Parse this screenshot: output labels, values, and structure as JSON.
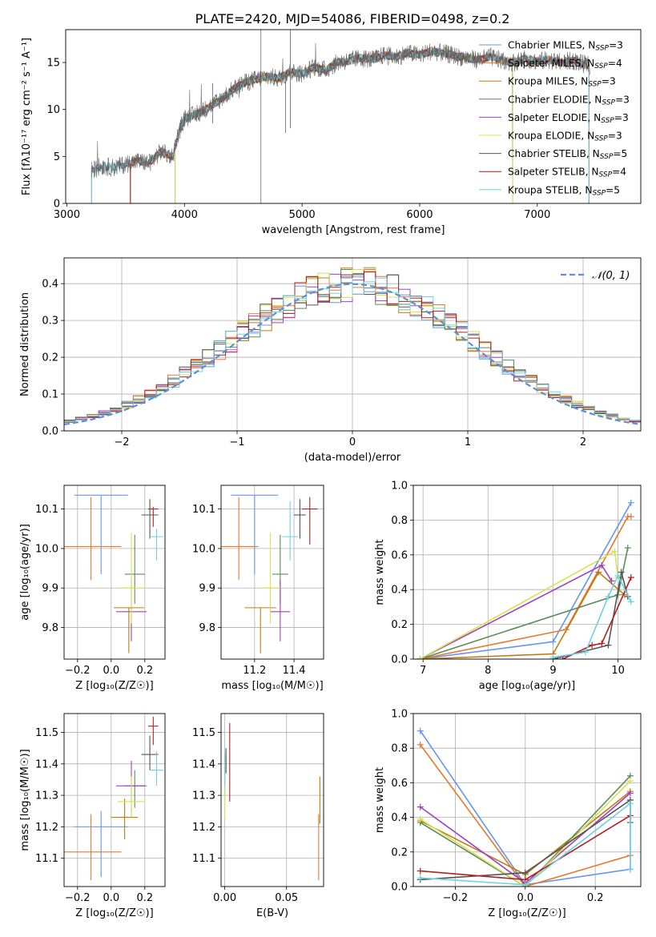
{
  "figure": {
    "title": "PLATE=2420, MJD=54086, FIBERID=0498, z=0.2"
  },
  "colors": {
    "Chabrier MILES": "#6495ed",
    "Salpeter MILES": "#e8772e",
    "Kroupa MILES": "#c07a10",
    "Chabrier ELODIE": "#5b8a5b",
    "Salpeter ELODIE": "#a040c0",
    "Kroupa ELODIE": "#d8e050",
    "Chabrier STELIB": "#555555",
    "Salpeter STELIB": "#b02020",
    "Kroupa STELIB": "#70d0e0",
    "normal_curve": "#5b8fd8"
  },
  "chart_data": [
    {
      "id": "spectrum",
      "type": "line",
      "title": "PLATE=2420, MJD=54086, FIBERID=0498, z=0.2",
      "xlabel": "wavelength [Angstrom, rest frame]",
      "ylabel": "Flux [fλ10⁻¹⁷ erg cm⁻² s⁻¹ A⁻¹]",
      "xlim": [
        2990,
        7880
      ],
      "ylim": [
        0,
        18.5
      ],
      "xticks": [
        3000,
        4000,
        5000,
        6000,
        7000
      ],
      "yticks": [
        0,
        5,
        10,
        15
      ],
      "grid": false,
      "legend_position": "right",
      "legend": [
        {
          "label": "Chabrier MILES, N",
          "sub": "SSP",
          "suffix": "=3"
        },
        {
          "label": "Salpeter MILES, N",
          "sub": "SSP",
          "suffix": "=4"
        },
        {
          "label": "Kroupa MILES, N",
          "sub": "SSP",
          "suffix": "=3"
        },
        {
          "label": "Chabrier ELODIE, N",
          "sub": "SSP",
          "suffix": "=3"
        },
        {
          "label": "Salpeter ELODIE, N",
          "sub": "SSP",
          "suffix": "=3"
        },
        {
          "label": "Kroupa ELODIE, N",
          "sub": "SSP",
          "suffix": "=3"
        },
        {
          "label": "Chabrier STELIB, N",
          "sub": "SSP",
          "suffix": "=5"
        },
        {
          "label": "Salpeter STELIB, N",
          "sub": "SSP",
          "suffix": "=4"
        },
        {
          "label": "Kroupa STELIB, N",
          "sub": "SSP",
          "suffix": "=5"
        }
      ],
      "continuum": [
        [
          3200,
          0
        ],
        [
          3210,
          3.5
        ],
        [
          3300,
          4.0
        ],
        [
          3400,
          3.8
        ],
        [
          3500,
          4.2
        ],
        [
          3600,
          4.5
        ],
        [
          3700,
          4.3
        ],
        [
          3800,
          5.5
        ],
        [
          3900,
          5.0
        ],
        [
          3950,
          7.5
        ],
        [
          4000,
          9.0
        ],
        [
          4100,
          9.5
        ],
        [
          4200,
          10.2
        ],
        [
          4300,
          11.0
        ],
        [
          4400,
          12.0
        ],
        [
          4500,
          12.8
        ],
        [
          4600,
          13.2
        ],
        [
          4700,
          13.5
        ],
        [
          4800,
          13.3
        ],
        [
          4900,
          14.0
        ],
        [
          5000,
          13.8
        ],
        [
          5100,
          14.5
        ],
        [
          5200,
          14.2
        ],
        [
          5300,
          15.0
        ],
        [
          5400,
          15.2
        ],
        [
          5500,
          15.5
        ],
        [
          5600,
          15.3
        ],
        [
          5700,
          15.8
        ],
        [
          5800,
          15.6
        ],
        [
          5900,
          16.0
        ],
        [
          6000,
          15.8
        ],
        [
          6100,
          16.2
        ],
        [
          6200,
          16.0
        ],
        [
          6300,
          15.7
        ],
        [
          6400,
          15.5
        ],
        [
          6500,
          15.3
        ],
        [
          6600,
          15.6
        ],
        [
          6700,
          15.2
        ],
        [
          6800,
          15.0
        ],
        [
          6900,
          15.4
        ],
        [
          7000,
          15.1
        ],
        [
          7100,
          15.3
        ],
        [
          7200,
          15.0
        ],
        [
          7300,
          15.2
        ],
        [
          7400,
          14.8
        ],
        [
          7450,
          14.7
        ]
      ],
      "model_cutoffs": [
        7440,
        7440,
        7440,
        6790,
        6790,
        6790,
        7440,
        7440,
        7440
      ],
      "model_starts": [
        3540,
        3540,
        3540,
        3920,
        3920,
        3920,
        3210,
        3540,
        3210
      ],
      "spikes": [
        [
          4650,
          0,
          18.5
        ],
        [
          4900,
          8,
          18.5
        ],
        [
          4240,
          8.5,
          12.8
        ],
        [
          4860,
          7.5,
          13.0
        ]
      ]
    },
    {
      "id": "residual_histogram",
      "type": "histogram",
      "xlabel": "(data-model)/error",
      "ylabel": "Normed distribution",
      "xlim": [
        -2.5,
        2.5
      ],
      "ylim": [
        0,
        0.47
      ],
      "xticks": [
        -2,
        -1,
        0,
        1,
        2
      ],
      "yticks": [
        0.0,
        0.1,
        0.2,
        0.3,
        0.4
      ],
      "grid": true,
      "legend_position": "top-right",
      "legend": [
        {
          "label": "𝒩(0, 1)"
        }
      ],
      "bin_width": 0.1,
      "bin_start": -2.5,
      "gaussian": {
        "mean": 0,
        "sigma": 1
      }
    },
    {
      "id": "age_vs_Z",
      "type": "errorbar",
      "xlabel": "Z [log₁₀(Z/Z☉)]",
      "ylabel": "age  [log₁₀(age/yr)]",
      "xlim": [
        -0.28,
        0.32
      ],
      "ylim": [
        9.72,
        10.16
      ],
      "xticks": [
        -0.2,
        0.0,
        0.2
      ],
      "yticks": [
        9.8,
        9.9,
        10.0,
        10.1
      ],
      "grid": true,
      "points": [
        {
          "series": "Chabrier MILES",
          "x": -0.06,
          "xerr": 0.16,
          "y": 10.135,
          "yerr_lo": 0.2,
          "yerr_hi": 0.0
        },
        {
          "series": "Salpeter MILES",
          "x": -0.12,
          "xerr": 0.18,
          "y": 10.005,
          "yerr_lo": 0.085,
          "yerr_hi": 0.125
        },
        {
          "series": "Kroupa MILES",
          "x": 0.05,
          "xerr": 0.0,
          "y": 9.85,
          "yerr_lo": 0.0,
          "yerr_hi": 0.0
        },
        {
          "series": "Chabrier ELODIE",
          "x": 0.14,
          "xerr": 0.06,
          "y": 9.935,
          "yerr_lo": 0.075,
          "yerr_hi": 0.1
        },
        {
          "series": "Salpeter ELODIE",
          "x": 0.12,
          "xerr": 0.09,
          "y": 9.84,
          "yerr_lo": 0.075,
          "yerr_hi": 0.08
        },
        {
          "series": "Kroupa ELODIE",
          "x": 0.12,
          "xerr": 0.08,
          "y": 9.9,
          "yerr_lo": 0.09,
          "yerr_hi": 0.14
        },
        {
          "series": "Chabrier STELIB",
          "x": 0.23,
          "xerr": 0.05,
          "y": 10.085,
          "yerr_lo": 0.06,
          "yerr_hi": 0.04
        },
        {
          "series": "Salpeter STELIB",
          "x": 0.25,
          "xerr": 0.03,
          "y": 10.1,
          "yerr_lo": 0.045,
          "yerr_hi": 0.005
        },
        {
          "series": "Kroupa STELIB",
          "x": 0.27,
          "xerr": 0.04,
          "y": 10.03,
          "yerr_lo": 0.06,
          "yerr_hi": 0.02
        },
        {
          "series": "Kroupa MILES",
          "x": 0.105,
          "xerr": 0.09,
          "y": 9.85,
          "yerr_lo": 0.115,
          "yerr_hi": 0.0
        }
      ]
    },
    {
      "id": "age_vs_mass",
      "type": "errorbar",
      "xlabel": "mass [log₁₀(M/M☉)]",
      "ylabel": "",
      "xlim": [
        11.03,
        11.55
      ],
      "ylim": [
        9.72,
        10.16
      ],
      "xticks": [
        11.2,
        11.4
      ],
      "yticks": [
        9.8,
        9.9,
        10.0,
        10.1
      ],
      "grid": true,
      "points": [
        {
          "series": "Chabrier MILES",
          "x": 11.2,
          "xerr": 0.12,
          "y": 10.135,
          "yerr_lo": 0.2,
          "yerr_hi": 0.0
        },
        {
          "series": "Salpeter MILES",
          "x": 11.12,
          "xerr": 0.1,
          "y": 10.005,
          "yerr_lo": 0.085,
          "yerr_hi": 0.125
        },
        {
          "series": "Kroupa MILES",
          "x": 11.23,
          "xerr": 0.08,
          "y": 9.85,
          "yerr_lo": 0.115,
          "yerr_hi": 0.0
        },
        {
          "series": "Chabrier ELODIE",
          "x": 11.33,
          "xerr": 0.04,
          "y": 9.935,
          "yerr_lo": 0.075,
          "yerr_hi": 0.1
        },
        {
          "series": "Salpeter ELODIE",
          "x": 11.33,
          "xerr": 0.05,
          "y": 9.84,
          "yerr_lo": 0.075,
          "yerr_hi": 0.08
        },
        {
          "series": "Kroupa ELODIE",
          "x": 11.28,
          "xerr": 0.05,
          "y": 9.9,
          "yerr_lo": 0.09,
          "yerr_hi": 0.14
        },
        {
          "series": "Chabrier STELIB",
          "x": 11.43,
          "xerr": 0.03,
          "y": 10.085,
          "yerr_lo": 0.06,
          "yerr_hi": 0.04
        },
        {
          "series": "Salpeter STELIB",
          "x": 11.48,
          "xerr": 0.04,
          "y": 10.1,
          "yerr_lo": 0.09,
          "yerr_hi": 0.03
        },
        {
          "series": "Kroupa STELIB",
          "x": 11.38,
          "xerr": 0.04,
          "y": 10.03,
          "yerr_lo": 0.06,
          "yerr_hi": 0.09
        }
      ]
    },
    {
      "id": "massweight_vs_age",
      "type": "line",
      "xlabel": "age  [log₁₀(age/yr)]",
      "ylabel": "mass weight",
      "xlim": [
        6.85,
        10.35
      ],
      "ylim": [
        0,
        1.0
      ],
      "xticks": [
        7,
        8,
        9,
        10
      ],
      "yticks": [
        0.0,
        0.2,
        0.4,
        0.6,
        0.8,
        1.0
      ],
      "grid": true,
      "series": [
        {
          "name": "Chabrier MILES",
          "x": [
            6.95,
            9.0,
            10.2
          ],
          "y": [
            0.0,
            0.1,
            0.9
          ]
        },
        {
          "name": "Salpeter MILES",
          "x": [
            6.95,
            9.2,
            10.15,
            10.2
          ],
          "y": [
            0.0,
            0.17,
            0.82,
            0.82
          ]
        },
        {
          "name": "Kroupa MILES",
          "x": [
            6.95,
            9.0,
            9.7,
            10.1
          ],
          "y": [
            0.0,
            0.03,
            0.5,
            0.37
          ]
        },
        {
          "name": "Chabrier ELODIE",
          "x": [
            6.95,
            10.0,
            10.15
          ],
          "y": [
            0.0,
            0.37,
            0.64
          ]
        },
        {
          "name": "Salpeter ELODIE",
          "x": [
            6.95,
            9.75,
            9.9
          ],
          "y": [
            0.0,
            0.54,
            0.45
          ]
        },
        {
          "name": "Kroupa ELODIE",
          "x": [
            6.95,
            9.95,
            10.0
          ],
          "y": [
            0.0,
            0.62,
            0.47
          ]
        },
        {
          "name": "Chabrier STELIB",
          "x": [
            9.0,
            9.85,
            10.05,
            10.15
          ],
          "y": [
            0.0,
            0.08,
            0.5,
            0.36
          ]
        },
        {
          "name": "Salpeter STELIB",
          "x": [
            9.15,
            9.6,
            9.75,
            10.2
          ],
          "y": [
            0.0,
            0.08,
            0.09,
            0.47
          ]
        },
        {
          "name": "Kroupa STELIB",
          "x": [
            9.0,
            9.5,
            9.85,
            10.0,
            10.2
          ],
          "y": [
            0.01,
            0.04,
            0.36,
            0.48,
            0.33
          ]
        }
      ]
    },
    {
      "id": "mass_vs_Z",
      "type": "errorbar",
      "xlabel": "Z [log₁₀(Z/Z☉)]",
      "ylabel": "mass [log₁₀(M/M☉)]",
      "xlim": [
        -0.28,
        0.32
      ],
      "ylim": [
        11.01,
        11.56
      ],
      "xticks": [
        -0.2,
        0.0,
        0.2
      ],
      "yticks": [
        11.1,
        11.2,
        11.3,
        11.4,
        11.5
      ],
      "grid": true,
      "points": [
        {
          "series": "Chabrier MILES",
          "x": -0.06,
          "xerr": 0.16,
          "y": 11.2,
          "yerr_lo": 0.16,
          "yerr_hi": 0.05
        },
        {
          "series": "Salpeter MILES",
          "x": -0.12,
          "xerr": 0.18,
          "y": 11.12,
          "yerr_lo": 0.09,
          "yerr_hi": 0.12
        },
        {
          "series": "Kroupa MILES",
          "x": 0.08,
          "xerr": 0.08,
          "y": 11.23,
          "yerr_lo": 0.07,
          "yerr_hi": 0.06
        },
        {
          "series": "Chabrier ELODIE",
          "x": 0.14,
          "xerr": 0.06,
          "y": 11.33,
          "yerr_lo": 0.07,
          "yerr_hi": 0.05
        },
        {
          "series": "Salpeter ELODIE",
          "x": 0.12,
          "xerr": 0.09,
          "y": 11.33,
          "yerr_lo": 0.1,
          "yerr_hi": 0.08
        },
        {
          "series": "Kroupa ELODIE",
          "x": 0.12,
          "xerr": 0.08,
          "y": 11.28,
          "yerr_lo": 0.05,
          "yerr_hi": 0.08
        },
        {
          "series": "Chabrier STELIB",
          "x": 0.23,
          "xerr": 0.05,
          "y": 11.43,
          "yerr_lo": 0.05,
          "yerr_hi": 0.06
        },
        {
          "series": "Salpeter STELIB",
          "x": 0.25,
          "xerr": 0.03,
          "y": 11.52,
          "yerr_lo": 0.06,
          "yerr_hi": 0.03
        },
        {
          "series": "Kroupa STELIB",
          "x": 0.27,
          "xerr": 0.04,
          "y": 11.38,
          "yerr_lo": 0.05,
          "yerr_hi": 0.06
        }
      ]
    },
    {
      "id": "mass_vs_EBV",
      "type": "errorbar",
      "xlabel": "E(B-V)",
      "ylabel": "",
      "xlim": [
        -0.003,
        0.08
      ],
      "ylim": [
        11.01,
        11.56
      ],
      "xticks": [
        0.0,
        0.05
      ],
      "yticks": [
        11.1,
        11.2,
        11.3,
        11.4,
        11.5
      ],
      "grid": true,
      "points": [
        {
          "series": "Chabrier MILES",
          "x": 0.0,
          "xerr": 0.0,
          "y": 11.35,
          "yerr_lo": 0.06,
          "yerr_hi": 0.08
        },
        {
          "series": "Kroupa ELODIE",
          "x": 0.0,
          "xerr": 0.0,
          "y": 11.3,
          "yerr_lo": 0.07,
          "yerr_hi": 0.1
        },
        {
          "series": "Salpeter STELIB",
          "x": 0.004,
          "xerr": 0.0,
          "y": 11.41,
          "yerr_lo": 0.13,
          "yerr_hi": 0.12
        },
        {
          "series": "Chabrier STELIB",
          "x": 0.001,
          "xerr": 0.0,
          "y": 11.41,
          "yerr_lo": 0.04,
          "yerr_hi": 0.04
        },
        {
          "series": "Kroupa STELIB",
          "x": 0.0,
          "xerr": 0.0,
          "y": 11.38,
          "yerr_lo": 0.05,
          "yerr_hi": 0.06
        },
        {
          "series": "Salpeter MILES",
          "x": 0.076,
          "xerr": 0.0,
          "y": 11.13,
          "yerr_lo": 0.1,
          "yerr_hi": 0.11
        },
        {
          "series": "Kroupa MILES",
          "x": 0.077,
          "xerr": 0.0,
          "y": 11.28,
          "yerr_lo": 0.07,
          "yerr_hi": 0.08
        }
      ]
    },
    {
      "id": "massweight_vs_Z",
      "type": "line",
      "xlabel": "Z [log₁₀(Z/Z☉)]",
      "ylabel": "mass weight",
      "xlim": [
        -0.32,
        0.33
      ],
      "ylim": [
        0,
        1.0
      ],
      "xticks": [
        -0.2,
        0.0,
        0.2
      ],
      "yticks": [
        0.0,
        0.2,
        0.4,
        0.6,
        0.8,
        1.0
      ],
      "grid": true,
      "series": [
        {
          "name": "Chabrier MILES",
          "x": [
            -0.3,
            0.0,
            0.3,
            0.3
          ],
          "y": [
            0.9,
            0.01,
            0.1,
            0.5
          ]
        },
        {
          "name": "Salpeter MILES",
          "x": [
            -0.3,
            0.0,
            0.3
          ],
          "y": [
            0.82,
            0.0,
            0.18
          ]
        },
        {
          "name": "Kroupa MILES",
          "x": [
            -0.3,
            0.0,
            0.3
          ],
          "y": [
            0.38,
            0.07,
            0.55
          ]
        },
        {
          "name": "Chabrier ELODIE",
          "x": [
            -0.3,
            0.0,
            0.3
          ],
          "y": [
            0.37,
            0.0,
            0.64
          ]
        },
        {
          "name": "Salpeter ELODIE",
          "x": [
            -0.3,
            0.0,
            0.3
          ],
          "y": [
            0.46,
            0.02,
            0.54
          ]
        },
        {
          "name": "Kroupa ELODIE",
          "x": [
            -0.3,
            0.0,
            0.3
          ],
          "y": [
            0.39,
            0.0,
            0.61
          ]
        },
        {
          "name": "Chabrier STELIB",
          "x": [
            -0.3,
            0.0,
            0.3,
            0.3
          ],
          "y": [
            0.04,
            0.08,
            0.5,
            0.37
          ]
        },
        {
          "name": "Salpeter STELIB",
          "x": [
            -0.3,
            0.0,
            0.3
          ],
          "y": [
            0.09,
            0.04,
            0.41
          ]
        },
        {
          "name": "Kroupa STELIB",
          "x": [
            -0.3,
            0.0,
            0.3,
            0.3
          ],
          "y": [
            0.05,
            0.01,
            0.48,
            0.1
          ]
        }
      ]
    }
  ]
}
